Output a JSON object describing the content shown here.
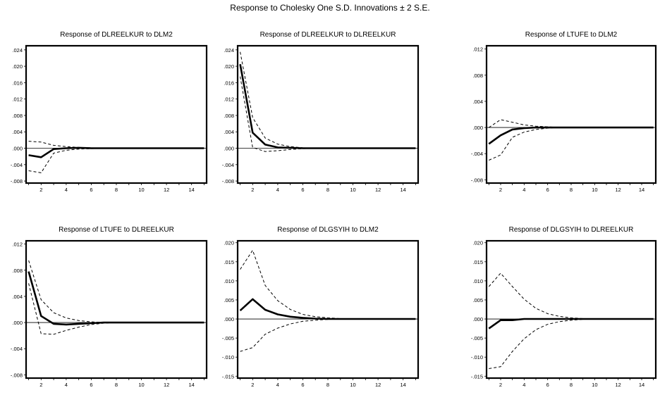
{
  "title": "Response to Cholesky One S.D. Innovations ± 2 S.E.",
  "chart_data": [
    {
      "type": "line",
      "title": "Response of DLREELKUR to DLM2",
      "x": [
        1,
        2,
        3,
        4,
        5,
        6,
        7,
        8,
        9,
        10,
        11,
        12,
        13,
        14,
        15
      ],
      "xticks": [
        "2",
        "4",
        "6",
        "8",
        "10",
        "12",
        "14"
      ],
      "xtick_values": [
        2,
        4,
        6,
        8,
        10,
        12,
        14
      ],
      "ylim": [
        -0.0085,
        0.025
      ],
      "yticks": [
        ".024",
        ".020",
        ".016",
        ".012",
        ".008",
        ".004",
        ".000",
        "-.004",
        "-.008"
      ],
      "ytick_values": [
        0.024,
        0.02,
        0.016,
        0.012,
        0.008,
        0.004,
        0.0,
        -0.004,
        -0.008
      ],
      "series": [
        {
          "role": "response",
          "values": [
            -0.0017,
            -0.0022,
            -0.0002,
            0.0,
            0.0001,
            0.0,
            0.0,
            0.0,
            0.0,
            0.0,
            0.0,
            0.0,
            0.0,
            0.0,
            0.0
          ]
        },
        {
          "role": "upper",
          "values": [
            0.0017,
            0.0015,
            0.0007,
            0.0004,
            0.0002,
            0.0001,
            0.0,
            0.0,
            0.0,
            0.0,
            0.0,
            0.0,
            0.0,
            0.0,
            0.0
          ]
        },
        {
          "role": "lower",
          "values": [
            -0.0055,
            -0.006,
            -0.0012,
            -0.0005,
            -0.0002,
            -0.0001,
            0.0,
            0.0,
            0.0,
            0.0,
            0.0,
            0.0,
            0.0,
            0.0,
            0.0
          ]
        }
      ]
    },
    {
      "type": "line",
      "title": "Response of DLREELKUR to DLREELKUR",
      "x": [
        1,
        2,
        3,
        4,
        5,
        6,
        7,
        8,
        9,
        10,
        11,
        12,
        13,
        14,
        15
      ],
      "xticks": [
        "2",
        "4",
        "6",
        "8",
        "10",
        "12",
        "14"
      ],
      "xtick_values": [
        2,
        4,
        6,
        8,
        10,
        12,
        14
      ],
      "ylim": [
        -0.0085,
        0.025
      ],
      "yticks": [
        ".024",
        ".020",
        ".016",
        ".012",
        ".008",
        ".004",
        ".000",
        "-.004",
        "-.008"
      ],
      "ytick_values": [
        0.024,
        0.02,
        0.016,
        0.012,
        0.008,
        0.004,
        0.0,
        -0.004,
        -0.008
      ],
      "series": [
        {
          "role": "response",
          "values": [
            0.0205,
            0.0038,
            0.0009,
            0.0002,
            0.0001,
            0.0,
            0.0,
            0.0,
            0.0,
            0.0,
            0.0,
            0.0,
            0.0,
            0.0,
            0.0
          ]
        },
        {
          "role": "upper",
          "values": [
            0.0235,
            0.0075,
            0.0025,
            0.001,
            0.0004,
            0.0001,
            0.0,
            0.0,
            0.0,
            0.0,
            0.0,
            0.0,
            0.0,
            0.0,
            0.0
          ]
        },
        {
          "role": "lower",
          "values": [
            0.0175,
            0.0002,
            -0.0008,
            -0.0006,
            -0.0003,
            -0.0001,
            0.0,
            0.0,
            0.0,
            0.0,
            0.0,
            0.0,
            0.0,
            0.0,
            0.0
          ]
        }
      ]
    },
    {
      "type": "line",
      "title": "Response of LTUFE to DLM2",
      "x": [
        1,
        2,
        3,
        4,
        5,
        6,
        7,
        8,
        9,
        10,
        11,
        12,
        13,
        14,
        15
      ],
      "xticks": [
        "2",
        "4",
        "6",
        "8",
        "10",
        "12",
        "14"
      ],
      "xtick_values": [
        2,
        4,
        6,
        8,
        10,
        12,
        14
      ],
      "ylim": [
        -0.0085,
        0.0125
      ],
      "yticks": [
        ".012",
        ".008",
        ".004",
        ".000",
        "-.004",
        "-.008"
      ],
      "ytick_values": [
        0.012,
        0.008,
        0.004,
        0.0,
        -0.004,
        -0.008
      ],
      "series": [
        {
          "role": "response",
          "values": [
            -0.0025,
            -0.0012,
            -0.0003,
            -0.0001,
            0.0,
            0.0,
            0.0,
            0.0,
            0.0,
            0.0,
            0.0,
            0.0,
            0.0,
            0.0,
            0.0
          ]
        },
        {
          "role": "upper",
          "values": [
            0.0,
            0.0012,
            0.0008,
            0.0004,
            0.0002,
            0.0001,
            0.0,
            0.0,
            0.0,
            0.0,
            0.0,
            0.0,
            0.0,
            0.0,
            0.0
          ]
        },
        {
          "role": "lower",
          "values": [
            -0.005,
            -0.0042,
            -0.0015,
            -0.0007,
            -0.0003,
            -0.0001,
            0.0,
            0.0,
            0.0,
            0.0,
            0.0,
            0.0,
            0.0,
            0.0,
            0.0
          ]
        }
      ]
    },
    {
      "type": "line",
      "title": "Response of LTUFE to DLREELKUR",
      "x": [
        1,
        2,
        3,
        4,
        5,
        6,
        7,
        8,
        9,
        10,
        11,
        12,
        13,
        14,
        15
      ],
      "xticks": [
        "2",
        "4",
        "6",
        "8",
        "10",
        "12",
        "14"
      ],
      "xtick_values": [
        2,
        4,
        6,
        8,
        10,
        12,
        14
      ],
      "ylim": [
        -0.0085,
        0.0125
      ],
      "yticks": [
        ".012",
        ".008",
        ".004",
        ".000",
        "-.004",
        "-.008"
      ],
      "ytick_values": [
        0.012,
        0.008,
        0.004,
        0.0,
        -0.004,
        -0.008
      ],
      "series": [
        {
          "role": "response",
          "values": [
            0.0078,
            0.001,
            -0.0002,
            -0.0003,
            -0.0002,
            -0.0001,
            0.0,
            0.0,
            0.0,
            0.0,
            0.0,
            0.0,
            0.0,
            0.0,
            0.0
          ]
        },
        {
          "role": "upper",
          "values": [
            0.0095,
            0.0035,
            0.0015,
            0.0007,
            0.0003,
            0.0001,
            0.0,
            0.0,
            0.0,
            0.0,
            0.0,
            0.0,
            0.0,
            0.0,
            0.0
          ]
        },
        {
          "role": "lower",
          "values": [
            0.006,
            -0.0017,
            -0.0018,
            -0.0012,
            -0.0007,
            -0.0003,
            -0.0001,
            0.0,
            0.0,
            0.0,
            0.0,
            0.0,
            0.0,
            0.0,
            0.0
          ]
        }
      ]
    },
    {
      "type": "line",
      "title": "Response of DLGSYIH to DLM2",
      "x": [
        1,
        2,
        3,
        4,
        5,
        6,
        7,
        8,
        9,
        10,
        11,
        12,
        13,
        14,
        15
      ],
      "xticks": [
        "2",
        "4",
        "6",
        "8",
        "10",
        "12",
        "14"
      ],
      "xtick_values": [
        2,
        4,
        6,
        8,
        10,
        12,
        14
      ],
      "ylim": [
        -0.0155,
        0.0205
      ],
      "yticks": [
        ".020",
        ".015",
        ".010",
        ".005",
        ".000",
        "-.005",
        "-.010",
        "-.015"
      ],
      "ytick_values": [
        0.02,
        0.015,
        0.01,
        0.005,
        0.0,
        -0.005,
        -0.01,
        -0.015
      ],
      "series": [
        {
          "role": "response",
          "values": [
            0.0022,
            0.0052,
            0.0024,
            0.0012,
            0.0006,
            0.0003,
            0.0001,
            0.0,
            0.0,
            0.0,
            0.0,
            0.0,
            0.0,
            0.0,
            0.0
          ]
        },
        {
          "role": "upper",
          "values": [
            0.013,
            0.018,
            0.0088,
            0.0048,
            0.0025,
            0.0012,
            0.0006,
            0.0003,
            0.0001,
            0.0,
            0.0,
            0.0,
            0.0,
            0.0,
            0.0
          ]
        },
        {
          "role": "lower",
          "values": [
            -0.0085,
            -0.0075,
            -0.004,
            -0.0024,
            -0.0013,
            -0.0006,
            -0.0003,
            -0.0001,
            0.0,
            0.0,
            0.0,
            0.0,
            0.0,
            0.0,
            0.0
          ]
        }
      ]
    },
    {
      "type": "line",
      "title": "Response of DLGSYIH to DLREELKUR",
      "x": [
        1,
        2,
        3,
        4,
        5,
        6,
        7,
        8,
        9,
        10,
        11,
        12,
        13,
        14,
        15
      ],
      "xticks": [
        "2",
        "4",
        "6",
        "8",
        "10",
        "12",
        "14"
      ],
      "xtick_values": [
        2,
        4,
        6,
        8,
        10,
        12,
        14
      ],
      "ylim": [
        -0.0155,
        0.0205
      ],
      "yticks": [
        ".020",
        ".015",
        ".010",
        ".005",
        ".000",
        "-.005",
        "-.010",
        "-.015"
      ],
      "ytick_values": [
        0.02,
        0.015,
        0.01,
        0.005,
        0.0,
        -0.005,
        -0.01,
        -0.015
      ],
      "series": [
        {
          "role": "response",
          "values": [
            -0.0025,
            -0.0003,
            -0.0003,
            0.0,
            0.0,
            0.0,
            0.0,
            0.0,
            0.0,
            0.0,
            0.0,
            0.0,
            0.0,
            0.0,
            0.0
          ]
        },
        {
          "role": "upper",
          "values": [
            0.0085,
            0.012,
            0.0085,
            0.0052,
            0.0028,
            0.0014,
            0.0007,
            0.0003,
            0.0001,
            0.0,
            0.0,
            0.0,
            0.0,
            0.0,
            0.0
          ]
        },
        {
          "role": "lower",
          "values": [
            -0.013,
            -0.0125,
            -0.0085,
            -0.0052,
            -0.0028,
            -0.0014,
            -0.0007,
            -0.0003,
            -0.0001,
            0.0,
            0.0,
            0.0,
            0.0,
            0.0,
            0.0
          ]
        }
      ]
    }
  ]
}
